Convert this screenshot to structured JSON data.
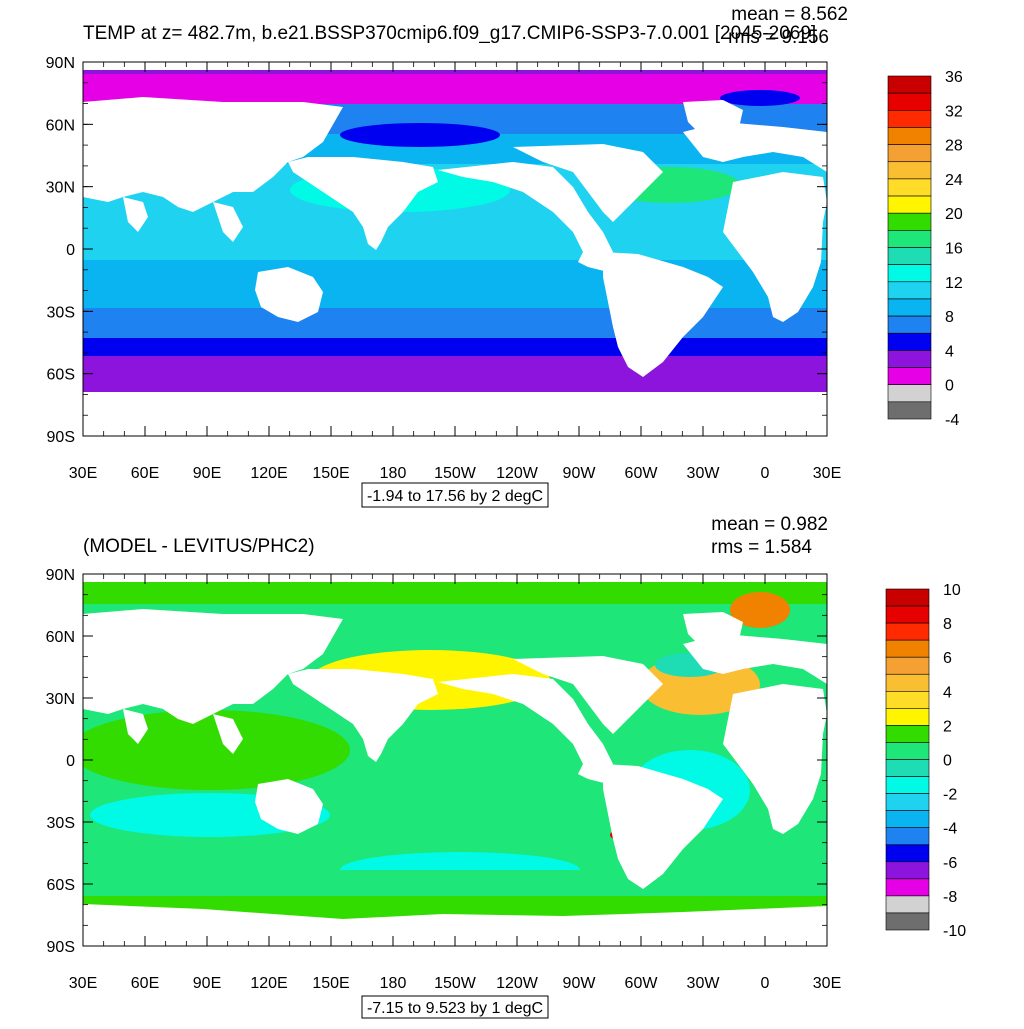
{
  "panels": [
    {
      "title": "TEMP at z= 482.7m, b.e21.BSSP370cmip6.f09_g17.CMIP6-SSP3-7.0.001 [2045-2069]",
      "mean": "mean = 8.562",
      "rms": "rms = 9.156",
      "range_label": "-1.94 to 17.56 by 2 degC",
      "lat_ticks": [
        "90N",
        "60N",
        "30N",
        "0",
        "30S",
        "60S",
        "90S"
      ],
      "lon_ticks": [
        "30E",
        "60E",
        "90E",
        "120E",
        "150E",
        "180",
        "150W",
        "120W",
        "90W",
        "60W",
        "30W",
        "0",
        "30E"
      ],
      "colorbar": {
        "labels": [
          "36",
          "32",
          "28",
          "24",
          "20",
          "16",
          "12",
          "8",
          "4",
          "0",
          "-4"
        ],
        "colors_top_to_bottom": [
          "#c80000",
          "#e60000",
          "#ff2a00",
          "#f08200",
          "#f5a032",
          "#fabe32",
          "#ffdc28",
          "#fff500",
          "#32dc00",
          "#1ee678",
          "#1edcb4",
          "#00fae6",
          "#1ed2f0",
          "#0ab4f0",
          "#1e82f0",
          "#0000f0",
          "#8c14dc",
          "#e600e6",
          "#d2d2d2",
          "#6e6e6e"
        ]
      }
    },
    {
      "title": "(MODEL - LEVITUS/PHC2)",
      "mean": "mean = 0.982",
      "rms": "rms = 1.584",
      "range_label": "-7.15 to 9.523 by 1 degC",
      "lat_ticks": [
        "90N",
        "60N",
        "30N",
        "0",
        "30S",
        "60S",
        "90S"
      ],
      "lon_ticks": [
        "30E",
        "60E",
        "90E",
        "120E",
        "150E",
        "180",
        "150W",
        "120W",
        "90W",
        "60W",
        "30W",
        "0",
        "30E"
      ],
      "colorbar": {
        "labels": [
          "10",
          "8",
          "6",
          "4",
          "2",
          "0",
          "-2",
          "-4",
          "-6",
          "-8",
          "-10"
        ],
        "colors_top_to_bottom": [
          "#c80000",
          "#e60000",
          "#ff2a00",
          "#f08200",
          "#f5a032",
          "#fabe32",
          "#ffdc28",
          "#fff500",
          "#32dc00",
          "#1ee678",
          "#1edcb4",
          "#00fae6",
          "#1ed2f0",
          "#0ab4f0",
          "#1e82f0",
          "#0000f0",
          "#8c14dc",
          "#e600e6",
          "#d2d2d2",
          "#6e6e6e"
        ]
      }
    }
  ]
}
